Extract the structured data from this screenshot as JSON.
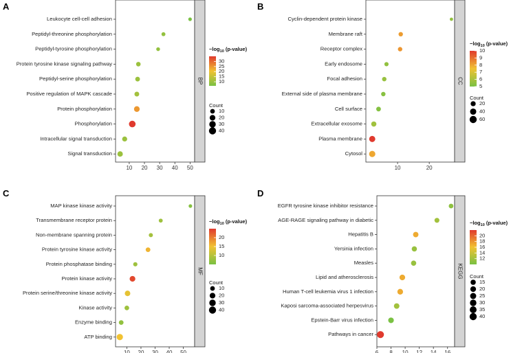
{
  "chart_data": [
    {
      "type": "scatter",
      "panel_label": "A",
      "facet": "BP",
      "terms": [
        "Leukocyte cell-cell adhesion",
        "Peptidyl-threonine phosphorylation",
        "Peptidyl-tyrosine phosphorylation",
        "Protein tyrosine kinase signaling pathway",
        "Peptidyl-serine phosphorylation",
        "Positive regulation of MAPK cascade",
        "Protein phosphorylation",
        "Phosphorylation",
        "Intracellular signal transduction",
        "Signal transduction"
      ],
      "x": [
        50,
        32.5,
        29,
        16,
        15.5,
        15,
        15,
        12,
        7,
        4
      ],
      "neglog10p": [
        6,
        9,
        9,
        10,
        10,
        11,
        25,
        35,
        10,
        10
      ],
      "count": [
        3,
        5,
        4,
        9,
        10,
        11,
        20,
        32,
        13,
        17
      ],
      "xticks": [
        10,
        20,
        30,
        40,
        50
      ],
      "xlim": [
        1,
        53
      ],
      "color_range": [
        6,
        35
      ],
      "colorbar_ticks": [
        30,
        25,
        20,
        15,
        10
      ],
      "size_ticks": [
        10,
        20,
        30,
        40
      ],
      "legend_color_title": "−log",
      "legend_color_sub": "10",
      "legend_color_rest": " (p-value)",
      "legend_size_title": "Count"
    },
    {
      "type": "scatter",
      "panel_label": "B",
      "facet": "CC",
      "terms": [
        "Cyclin-dependent protein kinase",
        "Membrane raft",
        "Receptor complex",
        "Early endosome",
        "Focal adhesion",
        "External side of plasma membrane",
        "Cell surface",
        "Extracellular exosome",
        "Plasma membrane",
        "Cytosol"
      ],
      "x": [
        27,
        11,
        10.8,
        6.5,
        5.8,
        5.5,
        4,
        2.5,
        2,
        2
      ],
      "neglog10p": [
        5.5,
        8.2,
        8.3,
        5.5,
        5.6,
        5.3,
        5.2,
        5.8,
        10,
        8
      ],
      "count": [
        3,
        12,
        12,
        10,
        12,
        12,
        15,
        22,
        38,
        40
      ],
      "xticks": [
        10,
        20
      ],
      "xlim": [
        0,
        28
      ],
      "color_range": [
        5,
        10
      ],
      "colorbar_ticks": [
        10,
        9,
        8,
        7,
        6,
        5
      ],
      "size_ticks": [
        20,
        40,
        60
      ],
      "legend_color_title": "−log",
      "legend_color_sub": "10",
      "legend_color_rest": " (p-value)",
      "legend_size_title": "Count"
    },
    {
      "type": "scatter",
      "panel_label": "C",
      "facet": "MF",
      "terms": [
        "MAP kinase kinase activity",
        "Transmembrane receptor protein",
        "Non-membrane spanning protein",
        "Protein tyrosine kinase activity",
        "Protein phosphatase binding",
        "Protein kinase activity",
        "Protein serine/threonine kinase activity",
        "Kinase activity",
        "Enzyme binding",
        "ATP binding"
      ],
      "x": [
        55,
        34,
        27,
        25,
        16,
        14,
        10.5,
        10,
        6,
        5
      ],
      "neglog10p": [
        6,
        8,
        8.5,
        16,
        8,
        24,
        14,
        8,
        7,
        15
      ],
      "count": [
        3,
        5,
        6,
        10,
        7,
        20,
        18,
        10,
        10,
        28
      ],
      "xticks": [
        10,
        20,
        30,
        40,
        50
      ],
      "xlim": [
        2,
        58
      ],
      "color_range": [
        5,
        25
      ],
      "colorbar_ticks": [
        20,
        15,
        10
      ],
      "size_ticks": [
        10,
        20,
        30,
        40
      ],
      "legend_color_title": "−log",
      "legend_color_sub": "10",
      "legend_color_rest": " (p-value)",
      "legend_size_title": "Count"
    },
    {
      "type": "scatter",
      "panel_label": "D",
      "facet": "KEGG",
      "terms": [
        "EGFR tyrosine kinase inhibitor resistance",
        "AGE-RAGE signaling pathway in diabetic",
        "Hepatitis B",
        "Yersinia infection",
        "Measles",
        "Lipid and atherosclerosis",
        "Human T-cell leukemia virus 1 infection",
        "Kaposi sarcoma-associated herpesvirus",
        "Epstein-Barr virus infection",
        "Pathways in cancer"
      ],
      "x": [
        16.5,
        14.5,
        11.5,
        11.3,
        11.2,
        9.6,
        9.3,
        8.8,
        8,
        6.5
      ],
      "neglog10p": [
        11,
        12,
        17,
        11.5,
        11.5,
        17,
        17,
        12,
        10,
        22
      ],
      "count": [
        10,
        12,
        17,
        15,
        15,
        20,
        20,
        18,
        19,
        38
      ],
      "xticks": [
        6,
        8,
        10,
        12,
        14,
        16
      ],
      "xlim": [
        6,
        17
      ],
      "color_range": [
        10,
        22
      ],
      "colorbar_ticks": [
        20,
        18,
        16,
        14,
        12
      ],
      "size_ticks": [
        15,
        20,
        25,
        30,
        35,
        40
      ],
      "legend_color_title": "−log",
      "legend_color_sub": "10",
      "legend_color_rest": " (p-value)",
      "legend_size_title": "Count"
    }
  ],
  "colors": {
    "low": "#7ac143",
    "mid": "#f1c232",
    "high": "#e03a2e",
    "facet_bg": "#d4d4d4",
    "axis": "#333333"
  }
}
